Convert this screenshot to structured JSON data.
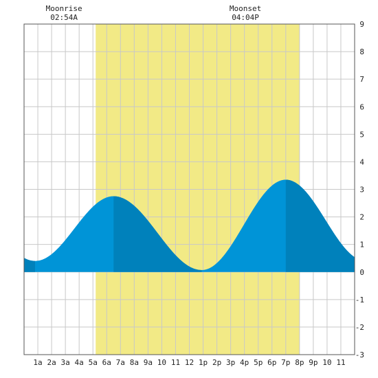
{
  "chart_data": {
    "type": "area",
    "title": "",
    "xlabel": "",
    "ylabel": "",
    "xlim": [
      0,
      24
    ],
    "ylim": [
      -3,
      9
    ],
    "y_ticks": [
      -3,
      -2,
      -1,
      0,
      1,
      2,
      3,
      4,
      5,
      6,
      7,
      8,
      9
    ],
    "x_ticks": [
      {
        "x": 1,
        "label": "1a"
      },
      {
        "x": 2,
        "label": "2a"
      },
      {
        "x": 3,
        "label": "3a"
      },
      {
        "x": 4,
        "label": "4a"
      },
      {
        "x": 5,
        "label": "5a"
      },
      {
        "x": 6,
        "label": "6a"
      },
      {
        "x": 7,
        "label": "7a"
      },
      {
        "x": 8,
        "label": "8a"
      },
      {
        "x": 9,
        "label": "9a"
      },
      {
        "x": 10,
        "label": "10"
      },
      {
        "x": 11,
        "label": "11"
      },
      {
        "x": 12,
        "label": "12"
      },
      {
        "x": 13,
        "label": "1p"
      },
      {
        "x": 14,
        "label": "2p"
      },
      {
        "x": 15,
        "label": "3p"
      },
      {
        "x": 16,
        "label": "4p"
      },
      {
        "x": 17,
        "label": "5p"
      },
      {
        "x": 18,
        "label": "6p"
      },
      {
        "x": 19,
        "label": "7p"
      },
      {
        "x": 20,
        "label": "8p"
      },
      {
        "x": 21,
        "label": "9p"
      },
      {
        "x": 22,
        "label": "10"
      },
      {
        "x": 23,
        "label": "11"
      }
    ],
    "grid": true,
    "daylight": {
      "start": 5.2,
      "end": 20.0,
      "color": "#f2ea86"
    },
    "tide_extremes": [
      {
        "time": 0.8,
        "height": 0.4,
        "kind": "low"
      },
      {
        "time": 6.5,
        "height": 2.75,
        "kind": "high"
      },
      {
        "time": 12.9,
        "height": 0.07,
        "kind": "low"
      },
      {
        "time": 19.0,
        "height": 3.35,
        "kind": "high"
      },
      {
        "time": 24.8,
        "height": 0.4,
        "kind": "low"
      }
    ],
    "tide_colors": {
      "main": "#0094d7",
      "dark": "#0081bb"
    },
    "dark_bands": [
      [
        0.0,
        0.8
      ],
      [
        6.5,
        12.9
      ],
      [
        19.0,
        24.0
      ]
    ],
    "annotations": [
      {
        "label": "Moonrise",
        "time_label": "02:54A",
        "x": 2.9
      },
      {
        "label": "Moonset",
        "time_label": "04:04P",
        "x": 16.07
      }
    ]
  }
}
